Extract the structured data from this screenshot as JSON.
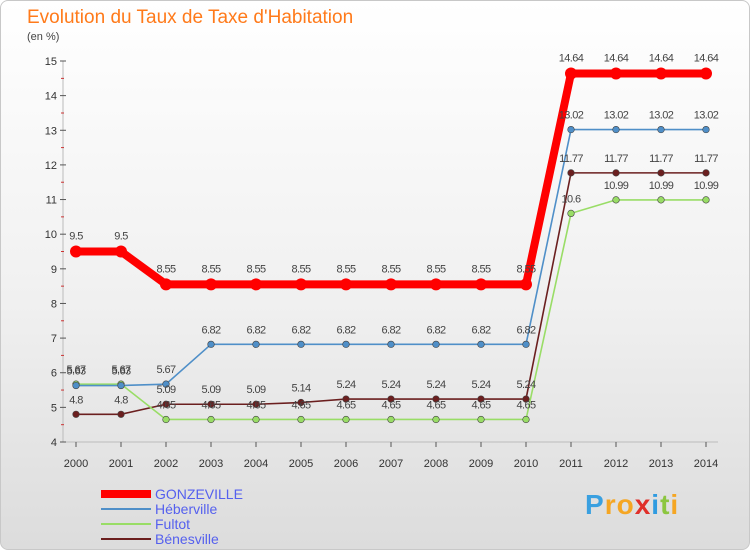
{
  "title": "Evolution du Taux de Taxe d'Habitation",
  "unit_label": "(en %)",
  "brand": {
    "letters": [
      "P",
      "r",
      "o",
      "x",
      "i",
      "t",
      "i"
    ],
    "colors": [
      "#3aa0e0",
      "#f5a623",
      "#f5a623",
      "#e0302a",
      "#2f9be0",
      "#8cc63f",
      "#f5a623"
    ]
  },
  "chart_data": {
    "type": "line",
    "x": [
      "2000",
      "2001",
      "2002",
      "2003",
      "2004",
      "2005",
      "2006",
      "2007",
      "2008",
      "2009",
      "2010",
      "2011",
      "2012",
      "2013",
      "2014"
    ],
    "ylim": [
      4,
      15
    ],
    "yticks": [
      "4",
      "5",
      "6",
      "7",
      "8",
      "9",
      "10",
      "11",
      "12",
      "13",
      "14",
      "15"
    ],
    "grid": false,
    "legend_position": "bottom-left",
    "series": [
      {
        "name": "GONZEVILLE",
        "color": "#ff0000",
        "values": [
          9.5,
          9.5,
          8.55,
          8.55,
          8.55,
          8.55,
          8.55,
          8.55,
          8.55,
          8.55,
          8.55,
          14.64,
          14.64,
          14.64,
          14.64
        ],
        "labels": [
          "9.5",
          "9.5",
          "8.55",
          "8.55",
          "8.55",
          "8.55",
          "8.55",
          "8.55",
          "8.55",
          "8.55",
          "8.55",
          "14.64",
          "14.64",
          "14.64",
          "14.64"
        ]
      },
      {
        "name": "Héberville",
        "color": "#4f8fc8",
        "values": [
          5.63,
          5.63,
          5.67,
          6.82,
          6.82,
          6.82,
          6.82,
          6.82,
          6.82,
          6.82,
          6.82,
          13.02,
          13.02,
          13.02,
          13.02
        ],
        "labels": [
          "5.63",
          "5.63",
          "5.67",
          "6.82",
          "6.82",
          "6.82",
          "6.82",
          "6.82",
          "6.82",
          "6.82",
          "6.82",
          "13.02",
          "13.02",
          "13.02",
          "13.02"
        ]
      },
      {
        "name": "Fultot",
        "color": "#99dd66",
        "values": [
          5.67,
          5.67,
          4.65,
          4.65,
          4.65,
          4.65,
          4.65,
          4.65,
          4.65,
          4.65,
          4.65,
          10.6,
          10.99,
          10.99,
          10.99
        ],
        "labels": [
          "5.67",
          "5.67",
          "4.65",
          "4.65",
          "4.65",
          "4.65",
          "4.65",
          "4.65",
          "4.65",
          "4.65",
          "4.65",
          "10.6",
          "10.99",
          "10.99",
          "10.99"
        ]
      },
      {
        "name": "Bénesville",
        "color": "#6b1f1f",
        "values": [
          4.8,
          4.8,
          5.09,
          5.09,
          5.09,
          5.14,
          5.24,
          5.24,
          5.24,
          5.24,
          5.24,
          11.77,
          11.77,
          11.77,
          11.77
        ],
        "labels": [
          "4.8",
          "4.8",
          "5.09",
          "5.09",
          "5.09",
          "5.14",
          "5.24",
          "5.24",
          "5.24",
          "5.24",
          "5.24",
          "11.77",
          "11.77",
          "11.77",
          "11.77"
        ]
      }
    ]
  }
}
